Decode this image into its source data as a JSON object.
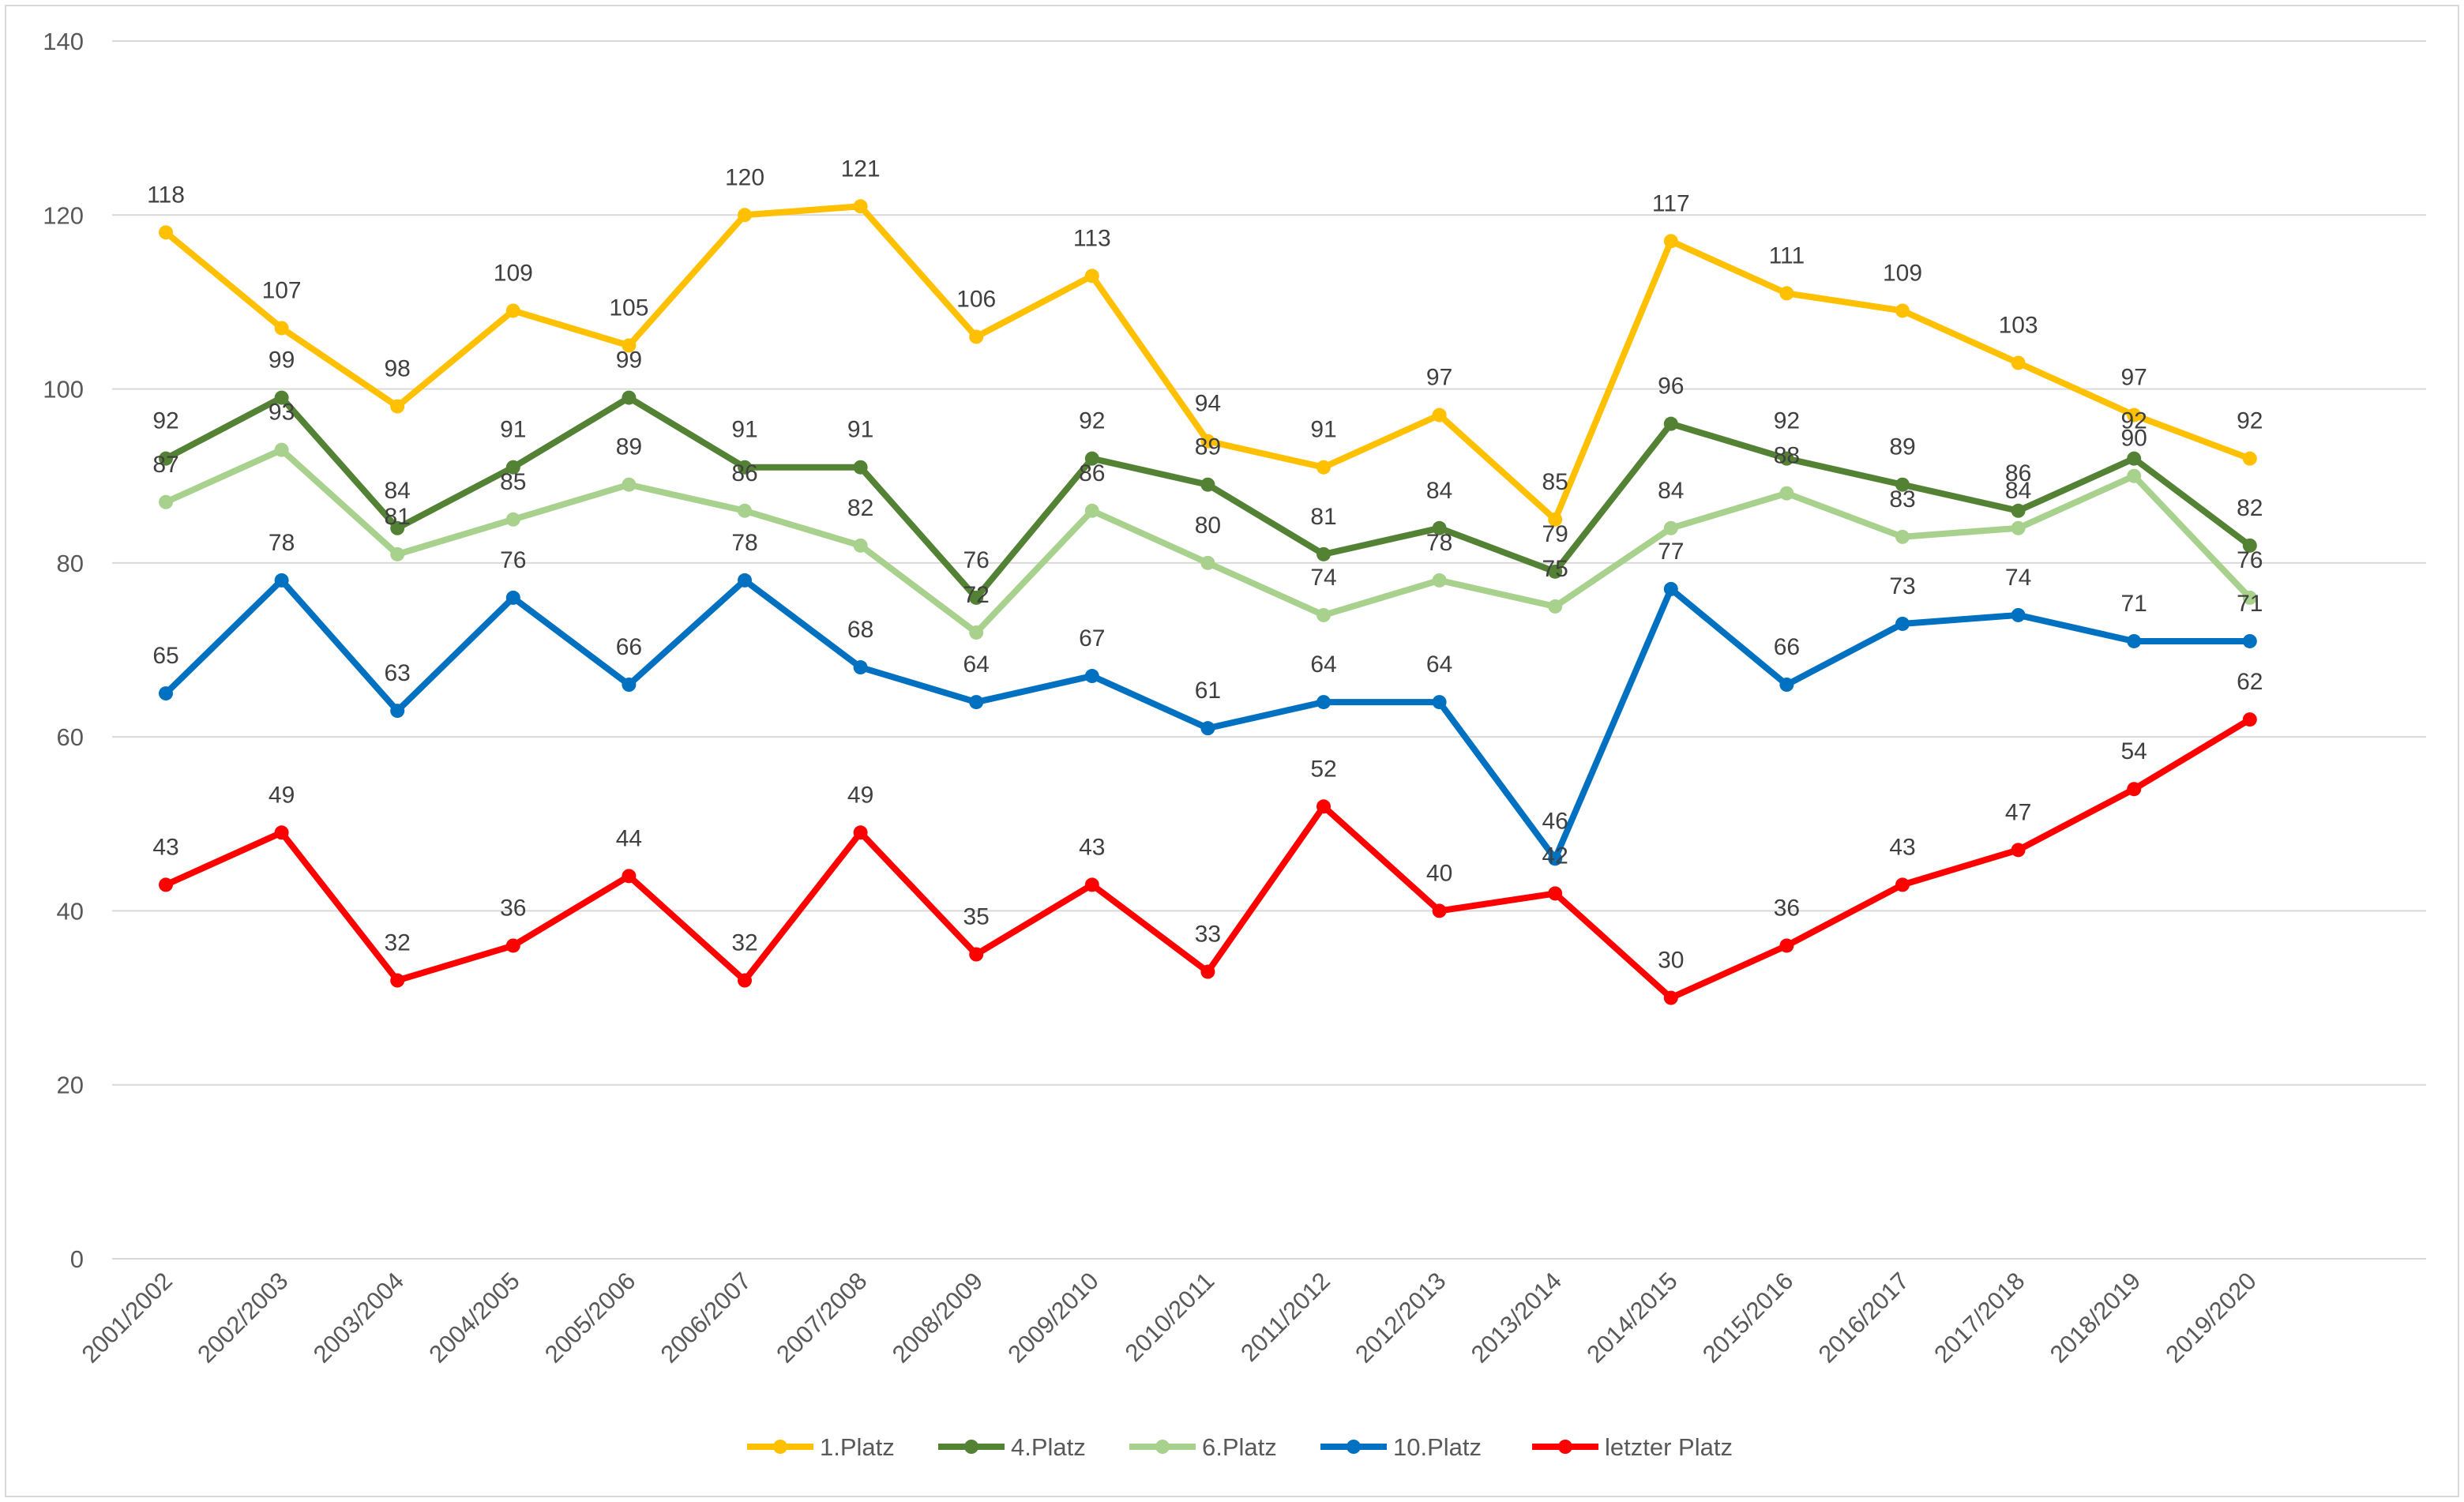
{
  "chart_data": {
    "type": "line",
    "title": "",
    "xlabel": "",
    "ylabel": "",
    "ylim": [
      0,
      140
    ],
    "yticks": [
      0,
      20,
      40,
      60,
      80,
      100,
      120,
      140
    ],
    "grid": true,
    "legend_position": "bottom",
    "categories": [
      "2001/2002",
      "2002/2003",
      "2003/2004",
      "2004/2005",
      "2005/2006",
      "2006/2007",
      "2007/2008",
      "2008/2009",
      "2009/2010",
      "2010/2011",
      "2011/2012",
      "2012/2013",
      "2013/2014",
      "2014/2015",
      "2015/2016",
      "2016/2017",
      "2017/2018",
      "2018/2019",
      "2019/2020"
    ],
    "series": [
      {
        "name": "1.Platz",
        "color": "#FFC000",
        "values": [
          118,
          107,
          98,
          109,
          105,
          120,
          121,
          106,
          113,
          94,
          91,
          97,
          85,
          117,
          111,
          109,
          103,
          97,
          92
        ]
      },
      {
        "name": "4.Platz",
        "color": "#548235",
        "values": [
          92,
          99,
          84,
          91,
          99,
          91,
          91,
          76,
          92,
          89,
          81,
          84,
          79,
          96,
          92,
          89,
          86,
          92,
          82
        ]
      },
      {
        "name": "6.Platz",
        "color": "#A9D18E",
        "values": [
          87,
          93,
          81,
          85,
          89,
          86,
          82,
          72,
          86,
          80,
          74,
          78,
          75,
          84,
          88,
          83,
          84,
          90,
          76
        ]
      },
      {
        "name": "10.Platz",
        "color": "#0070C0",
        "values": [
          65,
          78,
          63,
          76,
          66,
          78,
          68,
          64,
          67,
          61,
          64,
          64,
          46,
          77,
          66,
          73,
          74,
          71,
          71
        ]
      },
      {
        "name": "letzter Platz",
        "color": "#FF0000",
        "values": [
          43,
          49,
          32,
          36,
          44,
          32,
          49,
          35,
          43,
          33,
          52,
          40,
          42,
          30,
          36,
          43,
          47,
          54,
          62
        ]
      }
    ]
  }
}
